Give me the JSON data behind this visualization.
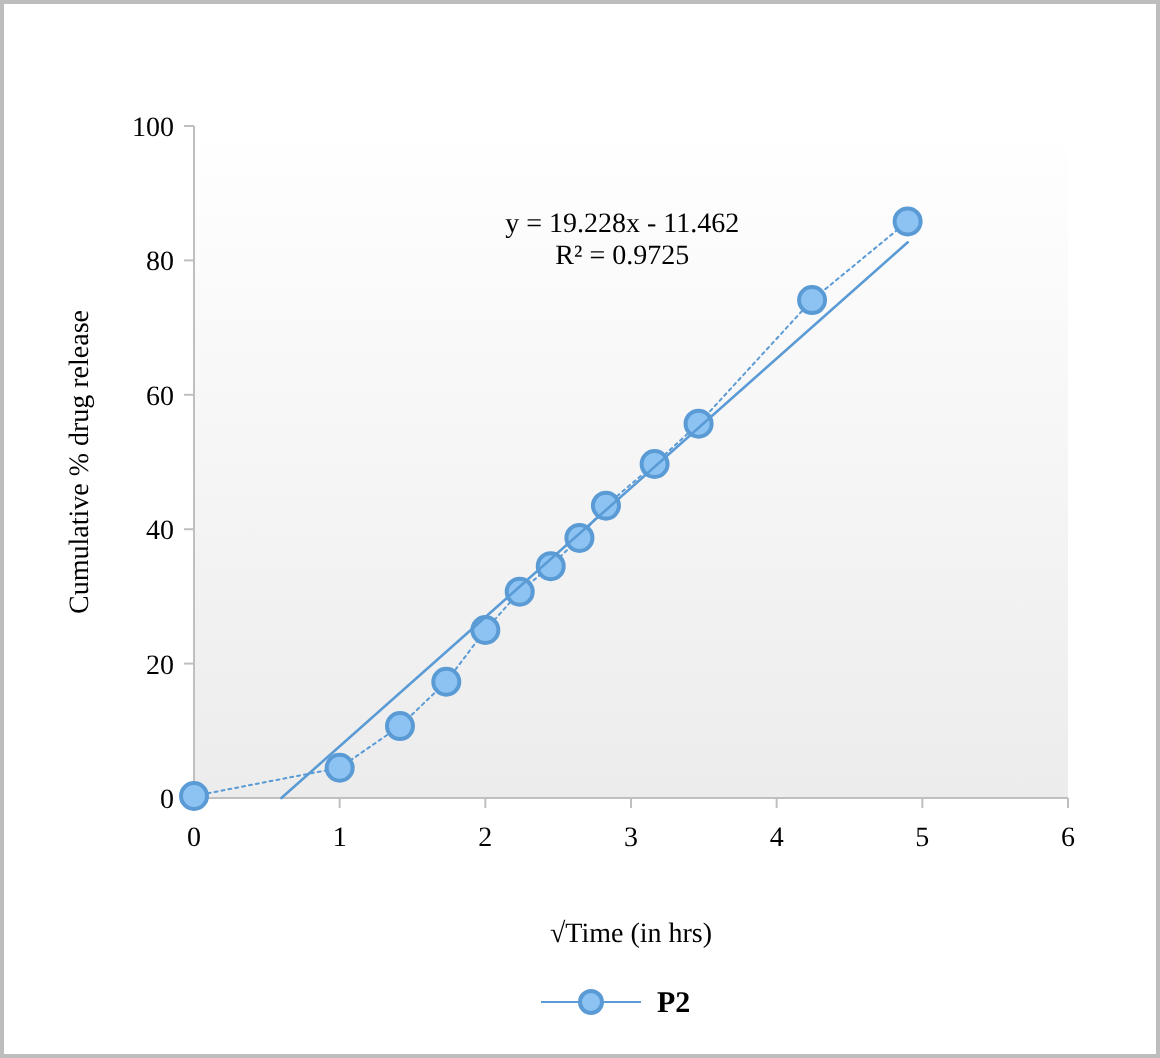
{
  "chart_data": {
    "type": "line",
    "xlabel": "√Time (in hrs)",
    "ylabel": "Cumulative % drug release",
    "xlim": [
      0,
      6
    ],
    "xticks": [
      0,
      1,
      2,
      3,
      4,
      5,
      6
    ],
    "ylim": [
      0,
      100
    ],
    "yticks": [
      0,
      20,
      40,
      60,
      80,
      100
    ],
    "grid": false,
    "legend": "bottom",
    "series": [
      {
        "name": "P2",
        "color": "#5b9bd5",
        "marker": "circle",
        "line_style": "dotted",
        "x": [
          0,
          1,
          1.414,
          1.732,
          2,
          2.236,
          2.449,
          2.646,
          2.828,
          3.162,
          3.464,
          4.243,
          4.899
        ],
        "values": [
          0.3,
          4.5,
          10.7,
          17.3,
          25,
          30.7,
          34.5,
          38.7,
          43.5,
          49.7,
          55.7,
          74.1,
          85.8
        ]
      },
      {
        "color": "#5b9bd5",
        "marker": "none",
        "line_style": "solid",
        "x": [
          0.6,
          4.9
        ],
        "values": [
          0,
          82.7
        ]
      }
    ],
    "annotations": [
      "y = 19.228x - 11.462",
      "R² = 0.9725"
    ]
  }
}
